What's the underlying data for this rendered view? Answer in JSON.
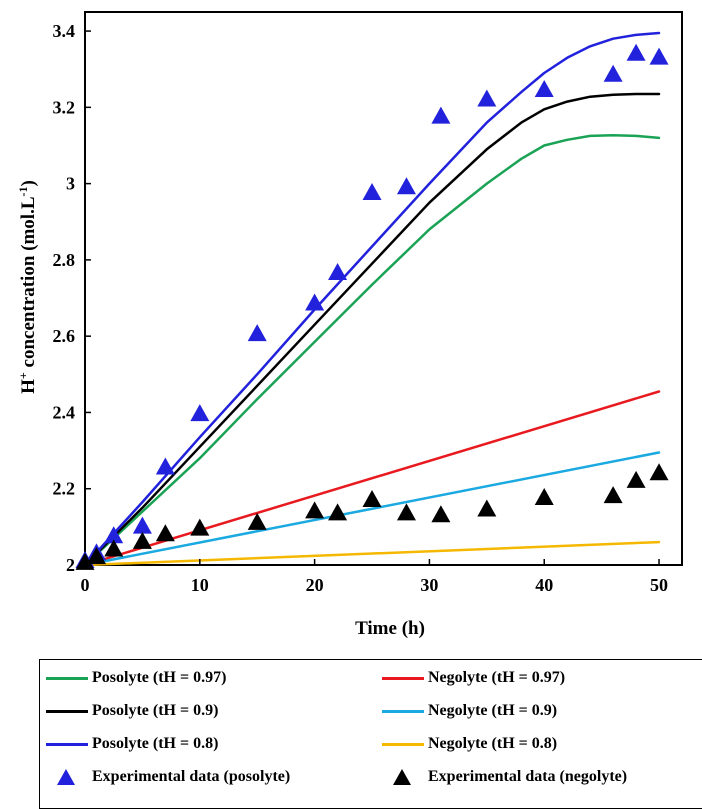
{
  "chart_data": {
    "type": "line",
    "xlabel": "Time (h)",
    "ylabel_main": "H",
    "ylabel_sup1": "+",
    "ylabel_mid": " concentration (mol.L",
    "ylabel_sup2": "-1",
    "ylabel_end": ")",
    "xlim": [
      0,
      52
    ],
    "ylim": [
      2,
      3.45
    ],
    "x_ticks": [
      0,
      10,
      20,
      30,
      40,
      50
    ],
    "x_tick_labels": [
      "0",
      "10",
      "20",
      "30",
      "40",
      "50"
    ],
    "y_ticks": [
      2,
      2.2,
      2.4,
      2.6,
      2.8,
      3,
      3.2,
      3.4
    ],
    "y_tick_labels": [
      "2",
      "2.2",
      "2.4",
      "2.6",
      "2.8",
      "3",
      "3.2",
      "3.4"
    ],
    "grid": false,
    "series": [
      {
        "name": "Posolyte (tH = 0.97)",
        "color": "#1aa355",
        "kind": "line",
        "x": [
          0,
          5,
          10,
          15,
          20,
          25,
          30,
          35,
          38,
          40,
          42,
          44,
          46,
          48,
          50
        ],
        "y": [
          2.0,
          2.14,
          2.28,
          2.435,
          2.585,
          2.735,
          2.88,
          3.0,
          3.065,
          3.1,
          3.115,
          3.125,
          3.127,
          3.125,
          3.12
        ]
      },
      {
        "name": "Posolyte (tH = 0.9)",
        "color": "#000000",
        "kind": "line",
        "x": [
          0,
          5,
          10,
          15,
          20,
          25,
          30,
          35,
          38,
          40,
          42,
          44,
          46,
          48,
          50
        ],
        "y": [
          2.0,
          2.15,
          2.31,
          2.47,
          2.63,
          2.79,
          2.95,
          3.09,
          3.16,
          3.195,
          3.215,
          3.228,
          3.233,
          3.235,
          3.235
        ]
      },
      {
        "name": "Posolyte (tH = 0.8)",
        "color": "#2222dd",
        "kind": "line",
        "x": [
          0,
          5,
          10,
          15,
          20,
          25,
          30,
          35,
          38,
          40,
          42,
          44,
          46,
          48,
          50
        ],
        "y": [
          2.0,
          2.165,
          2.335,
          2.5,
          2.67,
          2.835,
          3.0,
          3.16,
          3.24,
          3.29,
          3.33,
          3.36,
          3.38,
          3.39,
          3.395
        ]
      },
      {
        "name": "Negolyte (tH = 0.97)",
        "color": "#e8191f",
        "kind": "line",
        "x": [
          0,
          50
        ],
        "y": [
          2.0,
          2.455
        ]
      },
      {
        "name": "Negolyte (tH = 0.9)",
        "color": "#1aa9e0",
        "kind": "line",
        "x": [
          0,
          50
        ],
        "y": [
          2.0,
          2.295
        ]
      },
      {
        "name": "Negolyte (tH = 0.8)",
        "color": "#f5b800",
        "kind": "line",
        "x": [
          0,
          50
        ],
        "y": [
          2.0,
          2.06
        ]
      },
      {
        "name": "Experimental data (posolyte)",
        "color": "#2222dd",
        "kind": "scatter",
        "x": [
          0,
          1,
          2.5,
          5,
          7,
          10,
          15,
          20,
          22,
          25,
          28,
          31,
          35,
          40,
          46,
          48,
          50
        ],
        "y": [
          2.01,
          2.03,
          2.075,
          2.1,
          2.255,
          2.395,
          2.605,
          2.685,
          2.765,
          2.975,
          2.99,
          3.175,
          3.22,
          3.245,
          3.285,
          3.34,
          3.33
        ]
      },
      {
        "name": "Experimental data (negolyte)",
        "color": "#000000",
        "kind": "scatter",
        "x": [
          0,
          1,
          2.5,
          5,
          7,
          10,
          15,
          20,
          22,
          25,
          28,
          31,
          35,
          40,
          46,
          48,
          50
        ],
        "y": [
          2.005,
          2.02,
          2.04,
          2.06,
          2.08,
          2.095,
          2.11,
          2.14,
          2.135,
          2.17,
          2.135,
          2.13,
          2.145,
          2.175,
          2.18,
          2.22,
          2.24
        ]
      }
    ]
  },
  "legend": {
    "items": [
      {
        "label": "Posolyte (tH = 0.97)",
        "color": "#1aa355",
        "kind": "line"
      },
      {
        "label": "Negolyte (tH = 0.97)",
        "color": "#e8191f",
        "kind": "line"
      },
      {
        "label": "Posolyte (tH = 0.9)",
        "color": "#000000",
        "kind": "line"
      },
      {
        "label": "Negolyte (tH = 0.9)",
        "color": "#1aa9e0",
        "kind": "line"
      },
      {
        "label": "Posolyte (tH = 0.8)",
        "color": "#2222dd",
        "kind": "line"
      },
      {
        "label": "Negolyte (tH = 0.8)",
        "color": "#f5b800",
        "kind": "line"
      },
      {
        "label": "Experimental data (posolyte)",
        "color": "#2222dd",
        "kind": "marker"
      },
      {
        "label": "Experimental data (negolyte)",
        "color": "#000000",
        "kind": "marker"
      }
    ]
  }
}
